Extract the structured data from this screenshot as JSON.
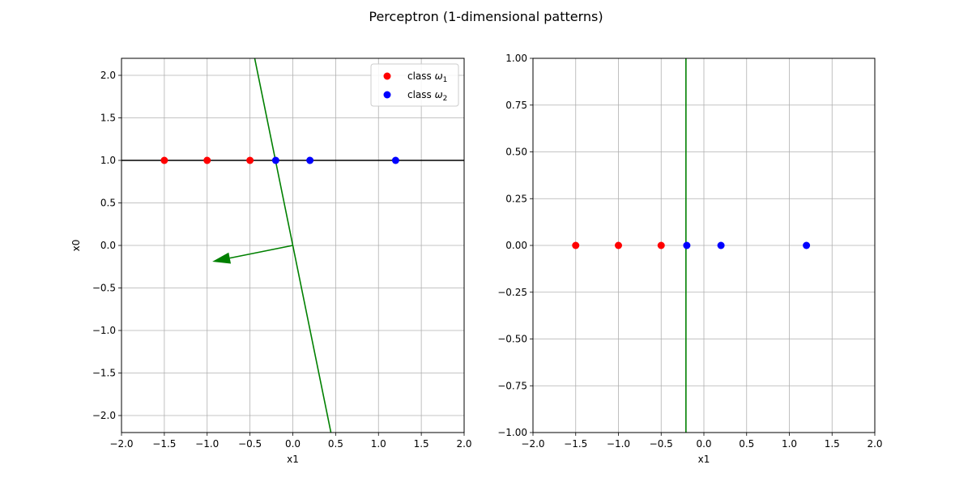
{
  "figure": {
    "title": "Perceptron (1-dimensional patterns)"
  },
  "chart_data": [
    {
      "type": "scatter",
      "xlabel": "x1",
      "ylabel": "x0",
      "xlim": [
        -2.0,
        2.0
      ],
      "ylim": [
        -2.2,
        2.2
      ],
      "xticks": [
        "−2.0",
        "−1.5",
        "−1.0",
        "−0.5",
        "0.0",
        "0.5",
        "1.0",
        "1.5",
        "2.0"
      ],
      "xtick_values": [
        -2.0,
        -1.5,
        -1.0,
        -0.5,
        0.0,
        0.5,
        1.0,
        1.5,
        2.0
      ],
      "yticks": [
        "−2.0",
        "−1.5",
        "−1.0",
        "−0.5",
        "0.0",
        "0.5",
        "1.0",
        "1.5",
        "2.0"
      ],
      "ytick_values": [
        -2.0,
        -1.5,
        -1.0,
        -0.5,
        0.0,
        0.5,
        1.0,
        1.5,
        2.0
      ],
      "grid": true,
      "legend": {
        "placement": "top-right",
        "entries": [
          {
            "prefix": "class ",
            "symbol": "ω",
            "subscript": "1",
            "color": "#ff0000"
          },
          {
            "prefix": "class ",
            "symbol": "ω",
            "subscript": "2",
            "color": "#0000ff"
          }
        ]
      },
      "series": [
        {
          "class": "omega1",
          "color": "#ff0000",
          "x": [
            -1.5,
            -1.0,
            -0.5
          ],
          "y": [
            1.0,
            1.0,
            1.0
          ]
        },
        {
          "class": "omega2",
          "color": "#0000ff",
          "x": [
            -0.2,
            0.2,
            1.2
          ],
          "y": [
            1.0,
            1.0,
            1.0
          ]
        }
      ],
      "lines": [
        {
          "kind": "horizontal",
          "y": 1.0,
          "color": "#000000"
        },
        {
          "kind": "decision-boundary",
          "color": "#008000",
          "x": [
            -0.445,
            0.445
          ],
          "y": [
            2.2,
            -2.2
          ]
        }
      ],
      "arrow": {
        "color": "#008000",
        "from": [
          0.0,
          0.0
        ],
        "to": [
          -0.94,
          -0.19
        ]
      }
    },
    {
      "type": "scatter",
      "xlabel": "x1",
      "ylabel": "",
      "xlim": [
        -2.0,
        2.0
      ],
      "ylim": [
        -1.0,
        1.0
      ],
      "xticks": [
        "−2.0",
        "−1.5",
        "−1.0",
        "−0.5",
        "0.0",
        "0.5",
        "1.0",
        "1.5",
        "2.0"
      ],
      "xtick_values": [
        -2.0,
        -1.5,
        -1.0,
        -0.5,
        0.0,
        0.5,
        1.0,
        1.5,
        2.0
      ],
      "yticks": [
        "−1.00",
        "−0.75",
        "−0.50",
        "−0.25",
        "0.00",
        "0.25",
        "0.50",
        "0.75",
        "1.00"
      ],
      "ytick_values": [
        -1.0,
        -0.75,
        -0.5,
        -0.25,
        0.0,
        0.25,
        0.5,
        0.75,
        1.0
      ],
      "grid": true,
      "series": [
        {
          "class": "omega1",
          "color": "#ff0000",
          "x": [
            -1.5,
            -1.0,
            -0.5
          ],
          "y": [
            0.0,
            0.0,
            0.0
          ]
        },
        {
          "class": "omega2",
          "color": "#0000ff",
          "x": [
            -0.2,
            0.2,
            1.2
          ],
          "y": [
            0.0,
            0.0,
            0.0
          ]
        }
      ],
      "lines": [
        {
          "kind": "vertical",
          "x": -0.21,
          "color": "#008000"
        }
      ]
    }
  ]
}
